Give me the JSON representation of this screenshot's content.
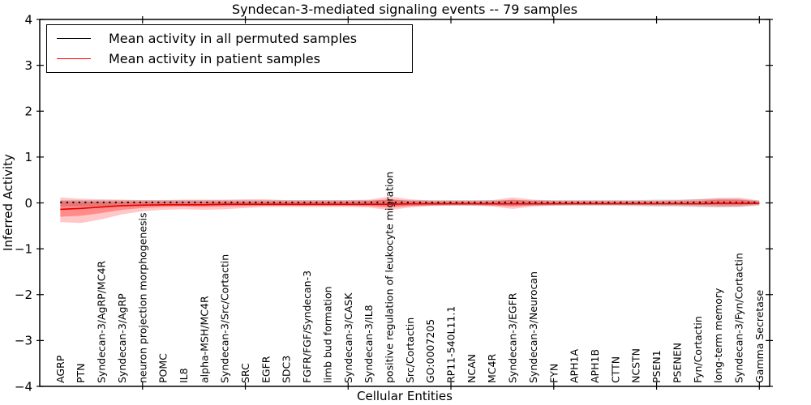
{
  "title": "Syndecan-3-mediated signaling events -- 79 samples",
  "axes": {
    "xlabel": "Cellular Entities",
    "ylabel": "Inferred Activity"
  },
  "legend": {
    "items": [
      {
        "label": "Mean activity in all permuted samples",
        "color": "#000000"
      },
      {
        "label": "Mean activity in patient samples",
        "color": "#ff0000"
      }
    ]
  },
  "colors": {
    "permuted_line": "#000000",
    "patient_line": "#e60000",
    "patient_band": "#ff0000",
    "permuted_band": "#999999",
    "frame": "#000000"
  },
  "chart_data": {
    "type": "line",
    "title": "Syndecan-3-mediated signaling events -- 79 samples",
    "xlabel": "Cellular Entities",
    "ylabel": "Inferred Activity",
    "ylim": [
      -4,
      4
    ],
    "yticks": [
      -4,
      -3,
      -2,
      -1,
      0,
      1,
      2,
      3,
      4
    ],
    "grid": false,
    "legend_position": "upper left",
    "categories": [
      "AGRP",
      "PTN",
      "Syndecan-3/AgRP/MC4R",
      "Syndecan-3/AgRP",
      "neuron projection morphogenesis",
      "POMC",
      "IL8",
      "alpha-MSH/MC4R",
      "Syndecan-3/Src/Cortactin",
      "SRC",
      "EGFR",
      "SDC3",
      "FGFR/FGF/Syndecan-3",
      "limb bud formation",
      "Syndecan-3/CASK",
      "Syndecan-3/IL8",
      "positive regulation of leukocyte migration",
      "Src/Cortactin",
      "GO:0007205",
      "RP11-540L11.1",
      "NCAN",
      "MC4R",
      "Syndecan-3/EGFR",
      "Syndecan-3/Neurocan",
      "FYN",
      "APH1A",
      "APH1B",
      "CTTN",
      "NCSTN",
      "PSEN1",
      "PSENEN",
      "Fyn/Cortactin",
      "long-term memory",
      "Syndecan-3/Fyn/Cortactin",
      "Gamma Secretase"
    ],
    "series": [
      {
        "name": "Mean activity in all permuted samples",
        "style": "dashed",
        "color": "#000000",
        "values": [
          0.01,
          0.01,
          0.01,
          0.01,
          0.01,
          0.01,
          0.01,
          0.01,
          0.01,
          0.01,
          0.01,
          0.01,
          0.01,
          0.01,
          0.01,
          0.01,
          0.01,
          0.01,
          0.01,
          0.01,
          0.01,
          0.01,
          0.01,
          0.01,
          0.01,
          0.01,
          0.01,
          0.01,
          0.01,
          0.01,
          0.01,
          0.01,
          0.01,
          0.01,
          0.01
        ]
      },
      {
        "name": "Mean activity in patient samples",
        "style": "solid",
        "color": "#e60000",
        "values": [
          -0.14,
          -0.12,
          -0.09,
          -0.06,
          -0.05,
          -0.04,
          -0.04,
          -0.04,
          -0.03,
          -0.03,
          -0.03,
          -0.03,
          -0.03,
          -0.03,
          -0.03,
          -0.03,
          -0.03,
          -0.02,
          -0.02,
          -0.02,
          -0.02,
          -0.02,
          -0.02,
          -0.02,
          -0.02,
          -0.02,
          -0.02,
          -0.02,
          -0.02,
          -0.02,
          -0.02,
          -0.02,
          -0.01,
          -0.01,
          -0.01
        ]
      }
    ],
    "bands": [
      {
        "name": "permuted-range",
        "color": "#999999",
        "opacity": 0.38,
        "upper": [
          0.06,
          0.06,
          0.06,
          0.06,
          0.06,
          0.06,
          0.06,
          0.06,
          0.06,
          0.06,
          0.06,
          0.06,
          0.06,
          0.06,
          0.06,
          0.06,
          0.07,
          0.06,
          0.06,
          0.06,
          0.06,
          0.06,
          0.06,
          0.06,
          0.06,
          0.06,
          0.06,
          0.06,
          0.06,
          0.07,
          0.07,
          0.08,
          0.09,
          0.08,
          0.05
        ],
        "lower": [
          -0.08,
          -0.08,
          -0.07,
          -0.07,
          -0.06,
          -0.06,
          -0.06,
          -0.06,
          -0.06,
          -0.06,
          -0.06,
          -0.06,
          -0.06,
          -0.06,
          -0.06,
          -0.06,
          -0.07,
          -0.06,
          -0.06,
          -0.06,
          -0.06,
          -0.06,
          -0.06,
          -0.06,
          -0.06,
          -0.06,
          -0.06,
          -0.06,
          -0.07,
          -0.08,
          -0.08,
          -0.09,
          -0.1,
          -0.09,
          -0.06
        ]
      },
      {
        "name": "patient-range-outer",
        "color": "#ff0000",
        "opacity": 0.22,
        "upper": [
          0.12,
          0.09,
          0.08,
          0.07,
          0.06,
          0.06,
          0.07,
          0.07,
          0.07,
          0.08,
          0.08,
          0.06,
          0.06,
          0.06,
          0.06,
          0.07,
          0.14,
          0.08,
          0.05,
          0.05,
          0.05,
          0.06,
          0.12,
          0.07,
          0.05,
          0.05,
          0.05,
          0.05,
          0.05,
          0.05,
          0.06,
          0.08,
          0.11,
          0.12,
          0.05
        ],
        "lower": [
          -0.42,
          -0.44,
          -0.36,
          -0.25,
          -0.18,
          -0.15,
          -0.14,
          -0.15,
          -0.14,
          -0.11,
          -0.09,
          -0.09,
          -0.09,
          -0.09,
          -0.09,
          -0.1,
          -0.16,
          -0.1,
          -0.07,
          -0.06,
          -0.06,
          -0.08,
          -0.13,
          -0.08,
          -0.06,
          -0.05,
          -0.05,
          -0.05,
          -0.05,
          -0.06,
          -0.06,
          -0.07,
          -0.08,
          -0.08,
          -0.04
        ]
      },
      {
        "name": "patient-range-inner",
        "color": "#ff0000",
        "opacity": 0.3,
        "upper": [
          0.04,
          0.03,
          0.03,
          0.03,
          0.03,
          0.03,
          0.03,
          0.03,
          0.03,
          0.03,
          0.03,
          0.03,
          0.03,
          0.03,
          0.03,
          0.04,
          0.08,
          0.04,
          0.03,
          0.03,
          0.03,
          0.03,
          0.07,
          0.04,
          0.03,
          0.03,
          0.03,
          0.03,
          0.03,
          0.03,
          0.03,
          0.04,
          0.07,
          0.07,
          0.03
        ],
        "lower": [
          -0.3,
          -0.28,
          -0.22,
          -0.15,
          -0.11,
          -0.09,
          -0.08,
          -0.09,
          -0.08,
          -0.07,
          -0.06,
          -0.06,
          -0.06,
          -0.06,
          -0.06,
          -0.07,
          -0.1,
          -0.07,
          -0.05,
          -0.04,
          -0.04,
          -0.05,
          -0.08,
          -0.05,
          -0.04,
          -0.03,
          -0.03,
          -0.03,
          -0.03,
          -0.03,
          -0.03,
          -0.04,
          -0.05,
          -0.05,
          -0.03
        ]
      }
    ]
  }
}
